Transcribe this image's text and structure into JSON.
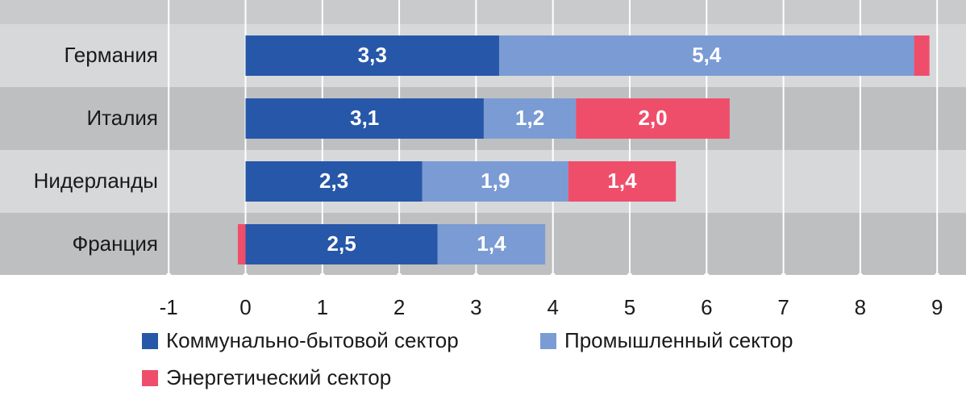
{
  "chart_data": {
    "type": "bar",
    "orientation": "horizontal",
    "stacked": true,
    "categories": [
      "Германия",
      "Италия",
      "Нидерланды",
      "Франция"
    ],
    "series": [
      {
        "name": "Коммунально-бытовой сектор",
        "color": "#2757a8",
        "values": [
          3.3,
          3.1,
          2.3,
          2.5
        ],
        "labels": [
          "3,3",
          "3,1",
          "2,3",
          "2,5"
        ]
      },
      {
        "name": "Промышленный сектор",
        "color": "#7b9bd4",
        "values": [
          5.4,
          1.2,
          1.9,
          1.4
        ],
        "labels": [
          "5,4",
          "1,2",
          "1,9",
          "1,4"
        ]
      },
      {
        "name": "Энергетический сектор",
        "color": "#ef4e6b",
        "values": [
          0.2,
          2.0,
          1.4,
          -0.1
        ],
        "labels": [
          "",
          "2,0",
          "1,4",
          ""
        ]
      }
    ],
    "xlim": [
      -1,
      9
    ],
    "xticks": [
      -1,
      0,
      1,
      2,
      3,
      4,
      5,
      6,
      7,
      8,
      9
    ],
    "xtick_labels": [
      "-1",
      "0",
      "1",
      "2",
      "3",
      "4",
      "5",
      "6",
      "7",
      "8",
      "9"
    ],
    "grid": true,
    "legend_position": "bottom",
    "title": "",
    "xlabel": "",
    "ylabel": ""
  }
}
